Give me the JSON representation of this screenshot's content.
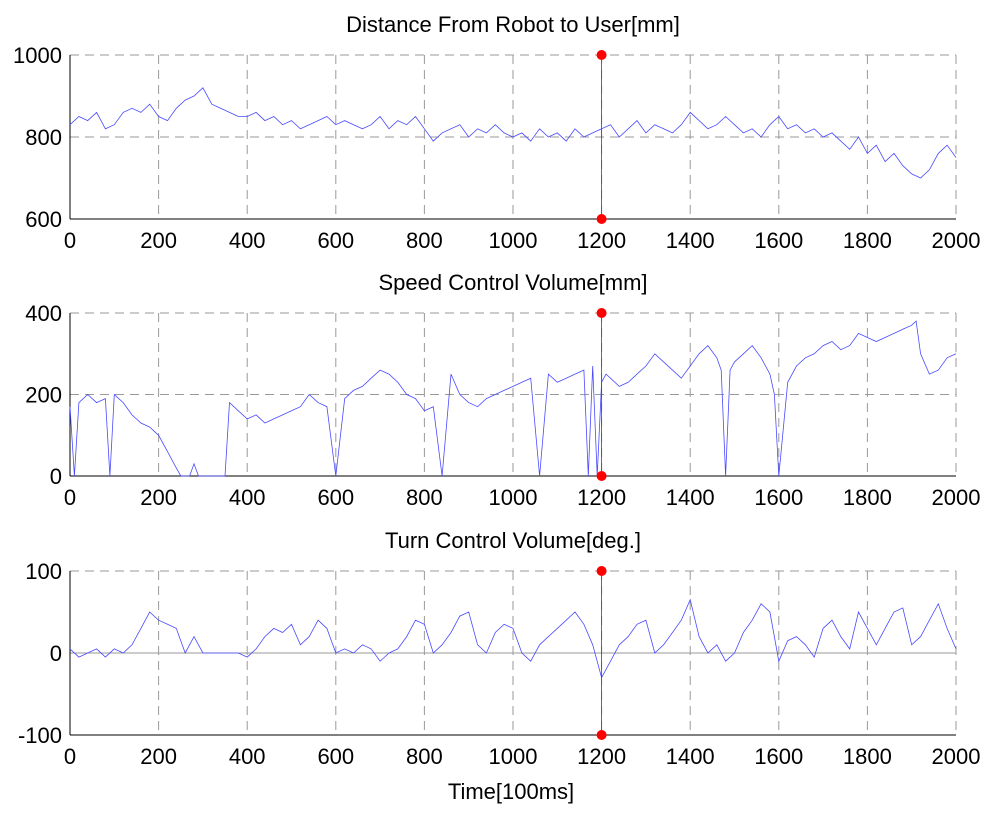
{
  "chart_data": [
    {
      "type": "line",
      "title": "Distance From Robot to User[mm]",
      "xlabel": "",
      "ylabel": "",
      "xlim": [
        0,
        2000
      ],
      "ylim": [
        600,
        1000
      ],
      "xticks": [
        0,
        200,
        400,
        600,
        800,
        1000,
        1200,
        1400,
        1600,
        1800,
        2000
      ],
      "yticks": [
        600,
        800,
        1000
      ],
      "grid": true,
      "line_color": "#4a4aff",
      "marker": {
        "x": 1200,
        "color": "#ff0000"
      },
      "series": [
        {
          "x": [
            0,
            20,
            40,
            60,
            80,
            100,
            120,
            140,
            160,
            180,
            200,
            220,
            240,
            260,
            280,
            300,
            320,
            340,
            360,
            380,
            400,
            420,
            440,
            460,
            480,
            500,
            520,
            540,
            560,
            580,
            600,
            620,
            640,
            660,
            680,
            700,
            720,
            740,
            760,
            780,
            800,
            820,
            840,
            860,
            880,
            900,
            920,
            940,
            960,
            980,
            1000,
            1020,
            1040,
            1060,
            1080,
            1100,
            1120,
            1140,
            1160,
            1180,
            1200,
            1220,
            1240,
            1260,
            1280,
            1300,
            1320,
            1340,
            1360,
            1380,
            1400,
            1420,
            1440,
            1460,
            1480,
            1500,
            1520,
            1540,
            1560,
            1580,
            1600,
            1620,
            1640,
            1660,
            1680,
            1700,
            1720,
            1740,
            1760,
            1780,
            1800,
            1820,
            1840,
            1860,
            1880,
            1900,
            1920,
            1940,
            1960,
            1980,
            2000
          ],
          "y": [
            830,
            850,
            840,
            860,
            820,
            830,
            860,
            870,
            860,
            880,
            850,
            840,
            870,
            890,
            900,
            920,
            880,
            870,
            860,
            850,
            850,
            860,
            840,
            850,
            830,
            840,
            820,
            830,
            840,
            850,
            830,
            840,
            830,
            820,
            830,
            850,
            820,
            840,
            830,
            850,
            820,
            790,
            810,
            820,
            830,
            800,
            820,
            810,
            830,
            810,
            800,
            810,
            790,
            820,
            800,
            810,
            790,
            820,
            800,
            810,
            820,
            830,
            800,
            820,
            840,
            810,
            830,
            820,
            810,
            830,
            860,
            840,
            820,
            830,
            850,
            830,
            810,
            820,
            800,
            830,
            850,
            820,
            830,
            810,
            820,
            800,
            810,
            790,
            770,
            800,
            760,
            780,
            740,
            760,
            730,
            710,
            700,
            720,
            760,
            780,
            750
          ]
        }
      ]
    },
    {
      "type": "line",
      "title": "Speed Control Volume[mm]",
      "xlabel": "",
      "ylabel": "",
      "xlim": [
        0,
        2000
      ],
      "ylim": [
        0,
        400
      ],
      "xticks": [
        0,
        200,
        400,
        600,
        800,
        1000,
        1200,
        1400,
        1600,
        1800,
        2000
      ],
      "yticks": [
        0,
        200,
        400
      ],
      "grid": true,
      "line_color": "#4a4aff",
      "marker": {
        "x": 1200,
        "color": "#ff0000"
      },
      "series": [
        {
          "x": [
            0,
            10,
            20,
            30,
            40,
            60,
            80,
            90,
            100,
            110,
            120,
            140,
            160,
            180,
            200,
            220,
            240,
            250,
            270,
            280,
            290,
            300,
            320,
            340,
            350,
            360,
            380,
            400,
            420,
            440,
            460,
            480,
            500,
            520,
            540,
            560,
            580,
            600,
            620,
            640,
            660,
            680,
            700,
            720,
            740,
            760,
            780,
            800,
            820,
            840,
            860,
            880,
            900,
            920,
            940,
            960,
            980,
            1000,
            1020,
            1040,
            1060,
            1080,
            1100,
            1120,
            1140,
            1160,
            1170,
            1180,
            1190,
            1200,
            1210,
            1220,
            1240,
            1260,
            1280,
            1300,
            1320,
            1340,
            1360,
            1380,
            1400,
            1420,
            1440,
            1460,
            1470,
            1480,
            1490,
            1500,
            1520,
            1540,
            1560,
            1580,
            1590,
            1600,
            1620,
            1640,
            1660,
            1680,
            1700,
            1720,
            1740,
            1760,
            1780,
            1800,
            1820,
            1840,
            1860,
            1880,
            1900,
            1910,
            1920,
            1940,
            1960,
            1980,
            2000
          ],
          "y": [
            170,
            0,
            180,
            190,
            200,
            180,
            190,
            0,
            200,
            190,
            180,
            150,
            130,
            120,
            100,
            60,
            20,
            0,
            0,
            30,
            0,
            0,
            0,
            0,
            0,
            180,
            160,
            140,
            150,
            130,
            140,
            150,
            160,
            170,
            200,
            180,
            170,
            0,
            190,
            210,
            220,
            240,
            260,
            250,
            230,
            200,
            190,
            160,
            170,
            0,
            250,
            200,
            180,
            170,
            190,
            200,
            210,
            220,
            230,
            240,
            0,
            250,
            230,
            240,
            250,
            260,
            0,
            270,
            0,
            230,
            250,
            240,
            220,
            230,
            250,
            270,
            300,
            280,
            260,
            240,
            270,
            300,
            320,
            290,
            260,
            0,
            260,
            280,
            300,
            320,
            290,
            250,
            200,
            0,
            230,
            270,
            290,
            300,
            320,
            330,
            310,
            320,
            350,
            340,
            330,
            340,
            350,
            360,
            370,
            380,
            300,
            250,
            260,
            290,
            300
          ]
        }
      ]
    },
    {
      "type": "line",
      "title": "Turn Control Volume[deg.]",
      "xlabel": "Time[100ms]",
      "ylabel": "",
      "xlim": [
        0,
        2000
      ],
      "ylim": [
        -100,
        100
      ],
      "xticks": [
        0,
        200,
        400,
        600,
        800,
        1000,
        1200,
        1400,
        1600,
        1800,
        2000
      ],
      "yticks": [
        -100,
        0,
        100
      ],
      "grid": true,
      "line_color": "#4a4aff",
      "marker": {
        "x": 1200,
        "color": "#ff0000"
      },
      "series": [
        {
          "x": [
            0,
            20,
            40,
            60,
            80,
            100,
            120,
            140,
            160,
            180,
            200,
            220,
            240,
            260,
            280,
            300,
            320,
            340,
            360,
            380,
            400,
            420,
            440,
            460,
            480,
            500,
            520,
            540,
            560,
            580,
            600,
            620,
            640,
            660,
            680,
            700,
            720,
            740,
            760,
            780,
            800,
            820,
            840,
            860,
            880,
            900,
            920,
            940,
            960,
            980,
            1000,
            1020,
            1040,
            1060,
            1080,
            1100,
            1120,
            1140,
            1160,
            1180,
            1200,
            1220,
            1240,
            1260,
            1280,
            1300,
            1320,
            1340,
            1360,
            1380,
            1400,
            1420,
            1440,
            1460,
            1480,
            1500,
            1520,
            1540,
            1560,
            1580,
            1600,
            1620,
            1640,
            1660,
            1680,
            1700,
            1720,
            1740,
            1760,
            1780,
            1800,
            1820,
            1840,
            1860,
            1880,
            1900,
            1920,
            1940,
            1960,
            1980,
            2000
          ],
          "y": [
            5,
            -5,
            0,
            5,
            -5,
            5,
            0,
            10,
            30,
            50,
            40,
            35,
            30,
            0,
            20,
            0,
            0,
            0,
            0,
            0,
            -5,
            5,
            20,
            30,
            25,
            35,
            10,
            20,
            40,
            30,
            0,
            5,
            0,
            10,
            5,
            -10,
            0,
            5,
            20,
            40,
            35,
            0,
            10,
            25,
            45,
            50,
            10,
            0,
            25,
            35,
            30,
            0,
            -10,
            10,
            20,
            30,
            40,
            50,
            35,
            10,
            -30,
            -10,
            10,
            20,
            35,
            40,
            0,
            10,
            25,
            40,
            65,
            20,
            0,
            10,
            -10,
            0,
            25,
            40,
            60,
            50,
            -10,
            15,
            20,
            10,
            -5,
            30,
            40,
            20,
            5,
            50,
            30,
            10,
            30,
            50,
            55,
            10,
            20,
            40,
            60,
            30,
            5
          ]
        }
      ]
    }
  ]
}
